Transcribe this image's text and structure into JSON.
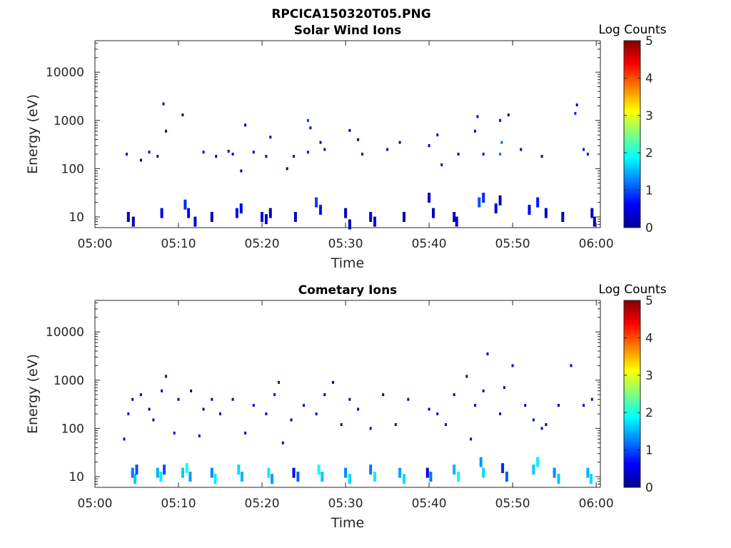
{
  "figure_title": "RPCICA150320T05.PNG",
  "colorbar": {
    "label": "Log Counts",
    "ticks": [
      "0",
      "1",
      "2",
      "3",
      "4",
      "5"
    ],
    "range": [
      0,
      5
    ],
    "colormap": "jet"
  },
  "chart_data": [
    {
      "type": "heatmap",
      "title": "Solar Wind Ions",
      "xlabel": "Time",
      "ylabel": "Energy (eV)",
      "x_ticks": [
        "05:00",
        "05:10",
        "05:20",
        "05:30",
        "05:40",
        "05:50",
        "06:00"
      ],
      "xlim_minutes": [
        0,
        60.5
      ],
      "y_ticks": [
        "10",
        "100",
        "1000",
        "10000"
      ],
      "y_scale": "log",
      "ylim": [
        6,
        45000
      ],
      "clim": [
        0,
        5
      ],
      "cells": [
        [
          4.0,
          10,
          0.3
        ],
        [
          4.6,
          8,
          0.2
        ],
        [
          8.0,
          12,
          0.5
        ],
        [
          10.8,
          18,
          0.8
        ],
        [
          11.2,
          12,
          0.6
        ],
        [
          12.0,
          8,
          0.4
        ],
        [
          14.0,
          10,
          0.3
        ],
        [
          17.0,
          12,
          0.7
        ],
        [
          17.5,
          15,
          0.6
        ],
        [
          20.0,
          10,
          0.5
        ],
        [
          20.5,
          9,
          0.4
        ],
        [
          21.0,
          12,
          0.3
        ],
        [
          24.0,
          10,
          0.3
        ],
        [
          26.5,
          20,
          0.9
        ],
        [
          27.0,
          14,
          0.7
        ],
        [
          30.0,
          12,
          0.3
        ],
        [
          30.5,
          7,
          0.3
        ],
        [
          33.0,
          10,
          0.4
        ],
        [
          33.5,
          8,
          0.5
        ],
        [
          37.0,
          10,
          0.2
        ],
        [
          40.0,
          25,
          0.3
        ],
        [
          40.5,
          12,
          0.3
        ],
        [
          43.0,
          10,
          0.4
        ],
        [
          43.3,
          8,
          0.4
        ],
        [
          46.0,
          20,
          1.0
        ],
        [
          46.5,
          25,
          0.8
        ],
        [
          48.0,
          15,
          0.5
        ],
        [
          48.5,
          22,
          0.3
        ],
        [
          52.0,
          14,
          0.5
        ],
        [
          53.0,
          20,
          0.7
        ],
        [
          54.0,
          12,
          0.3
        ],
        [
          56.0,
          10,
          0.3
        ],
        [
          59.5,
          12,
          0.4
        ],
        [
          59.8,
          8,
          0.3
        ],
        [
          3.8,
          200,
          0.4
        ],
        [
          5.5,
          150,
          0.2
        ],
        [
          6.5,
          220,
          0.5
        ],
        [
          7.5,
          180,
          0.4
        ],
        [
          8.2,
          2200,
          0.3
        ],
        [
          8.5,
          600,
          0.2
        ],
        [
          10.5,
          1300,
          0.2
        ],
        [
          13.0,
          220,
          0.5
        ],
        [
          14.5,
          180,
          0.3
        ],
        [
          16.0,
          230,
          0.3
        ],
        [
          16.5,
          200,
          0.5
        ],
        [
          17.5,
          90,
          0.3
        ],
        [
          18.0,
          800,
          0.2
        ],
        [
          19.0,
          220,
          0.3
        ],
        [
          20.5,
          180,
          0.4
        ],
        [
          21.0,
          450,
          0.3
        ],
        [
          23.0,
          100,
          0.2
        ],
        [
          23.8,
          180,
          0.5
        ],
        [
          25.5,
          1000,
          0.9
        ],
        [
          25.8,
          700,
          0.6
        ],
        [
          25.5,
          220,
          0.7
        ],
        [
          27.0,
          350,
          0.3
        ],
        [
          27.5,
          250,
          0.3
        ],
        [
          30.5,
          620,
          0.2
        ],
        [
          31.5,
          400,
          0.2
        ],
        [
          32.0,
          200,
          0.6
        ],
        [
          35.0,
          250,
          0.3
        ],
        [
          36.5,
          350,
          0.3
        ],
        [
          40.0,
          300,
          0.3
        ],
        [
          41.0,
          500,
          0.5
        ],
        [
          41.5,
          120,
          0.5
        ],
        [
          43.5,
          200,
          0.3
        ],
        [
          45.5,
          600,
          0.7
        ],
        [
          45.8,
          1200,
          0.4
        ],
        [
          46.5,
          200,
          0.5
        ],
        [
          48.5,
          1000,
          0.6
        ],
        [
          48.7,
          350,
          1.1
        ],
        [
          48.5,
          200,
          1.2
        ],
        [
          49.5,
          1300,
          0.3
        ],
        [
          51.0,
          250,
          0.3
        ],
        [
          53.5,
          180,
          0.2
        ],
        [
          57.5,
          1400,
          0.8
        ],
        [
          57.7,
          2100,
          0.5
        ],
        [
          58.5,
          250,
          0.4
        ],
        [
          59.0,
          200,
          0.5
        ]
      ]
    },
    {
      "type": "heatmap",
      "title": "Cometary Ions",
      "xlabel": "Time",
      "ylabel": "Energy (eV)",
      "x_ticks": [
        "05:00",
        "05:10",
        "05:20",
        "05:30",
        "05:40",
        "05:50",
        "06:00"
      ],
      "xlim_minutes": [
        0,
        60.5
      ],
      "y_ticks": [
        "10",
        "100",
        "1000",
        "10000"
      ],
      "y_scale": "log",
      "ylim": [
        6,
        45000
      ],
      "clim": [
        0,
        5
      ],
      "cells": [
        [
          4.5,
          12,
          1.2
        ],
        [
          4.8,
          9,
          1.6
        ],
        [
          5.0,
          14,
          1.0
        ],
        [
          7.5,
          12,
          1.5
        ],
        [
          7.9,
          10,
          1.8
        ],
        [
          8.3,
          14,
          1.0
        ],
        [
          10.5,
          12,
          1.6
        ],
        [
          11.0,
          15,
          2.0
        ],
        [
          11.4,
          10,
          1.4
        ],
        [
          14.0,
          12,
          1.3
        ],
        [
          14.4,
          9,
          1.8
        ],
        [
          17.2,
          14,
          1.7
        ],
        [
          17.6,
          10,
          1.5
        ],
        [
          20.8,
          12,
          1.8
        ],
        [
          21.2,
          9,
          1.4
        ],
        [
          23.8,
          12,
          0.6
        ],
        [
          24.3,
          10,
          1.1
        ],
        [
          26.8,
          14,
          1.9
        ],
        [
          27.2,
          10,
          1.6
        ],
        [
          30.0,
          12,
          1.3
        ],
        [
          30.5,
          9,
          1.7
        ],
        [
          33.0,
          14,
          1.2
        ],
        [
          33.5,
          10,
          1.8
        ],
        [
          36.5,
          12,
          1.4
        ],
        [
          37.0,
          9,
          1.7
        ],
        [
          39.8,
          12,
          0.6
        ],
        [
          40.2,
          10,
          1.2
        ],
        [
          43.0,
          14,
          1.5
        ],
        [
          43.5,
          10,
          1.9
        ],
        [
          46.2,
          20,
          1.4
        ],
        [
          46.5,
          12,
          1.7
        ],
        [
          48.8,
          15,
          0.8
        ],
        [
          49.3,
          10,
          1.1
        ],
        [
          52.5,
          14,
          1.6
        ],
        [
          53.0,
          20,
          1.8
        ],
        [
          55.0,
          12,
          1.3
        ],
        [
          55.5,
          9,
          1.6
        ],
        [
          59.0,
          12,
          1.5
        ],
        [
          59.4,
          9,
          1.7
        ],
        [
          3.5,
          60,
          0.4
        ],
        [
          4.0,
          200,
          0.5
        ],
        [
          4.5,
          400,
          0.3
        ],
        [
          5.5,
          500,
          0.4
        ],
        [
          6.5,
          250,
          0.3
        ],
        [
          7.0,
          150,
          0.5
        ],
        [
          8.0,
          600,
          0.4
        ],
        [
          8.5,
          1200,
          0.3
        ],
        [
          9.5,
          80,
          0.6
        ],
        [
          10.0,
          400,
          0.4
        ],
        [
          11.5,
          600,
          0.3
        ],
        [
          12.5,
          70,
          0.5
        ],
        [
          13.0,
          250,
          0.3
        ],
        [
          14.0,
          400,
          0.4
        ],
        [
          15.0,
          200,
          0.3
        ],
        [
          16.5,
          400,
          0.3
        ],
        [
          18.0,
          80,
          0.3
        ],
        [
          19.0,
          300,
          0.4
        ],
        [
          20.5,
          200,
          0.5
        ],
        [
          21.5,
          500,
          0.6
        ],
        [
          22.0,
          900,
          0.4
        ],
        [
          22.5,
          50,
          0.5
        ],
        [
          23.5,
          150,
          0.3
        ],
        [
          25.0,
          300,
          0.4
        ],
        [
          26.5,
          200,
          0.5
        ],
        [
          27.5,
          500,
          0.3
        ],
        [
          28.5,
          900,
          0.3
        ],
        [
          29.5,
          120,
          0.4
        ],
        [
          30.5,
          400,
          0.4
        ],
        [
          31.5,
          250,
          0.6
        ],
        [
          33.0,
          100,
          0.5
        ],
        [
          34.5,
          500,
          0.3
        ],
        [
          36.0,
          120,
          0.5
        ],
        [
          37.5,
          400,
          0.4
        ],
        [
          40.0,
          250,
          0.4
        ],
        [
          41.0,
          200,
          0.3
        ],
        [
          42.0,
          120,
          0.5
        ],
        [
          43.0,
          500,
          0.4
        ],
        [
          44.5,
          1200,
          0.3
        ],
        [
          45.0,
          60,
          0.4
        ],
        [
          45.5,
          300,
          0.5
        ],
        [
          46.5,
          600,
          0.4
        ],
        [
          47.0,
          3500,
          0.3
        ],
        [
          48.5,
          200,
          0.4
        ],
        [
          49.0,
          700,
          0.3
        ],
        [
          50.0,
          2000,
          0.3
        ],
        [
          51.5,
          300,
          0.3
        ],
        [
          52.5,
          150,
          0.4
        ],
        [
          53.5,
          100,
          0.5
        ],
        [
          54.0,
          120,
          0.4
        ],
        [
          55.5,
          300,
          0.3
        ],
        [
          57.0,
          2000,
          0.3
        ],
        [
          58.5,
          300,
          0.4
        ],
        [
          59.5,
          400,
          0.5
        ]
      ]
    }
  ]
}
